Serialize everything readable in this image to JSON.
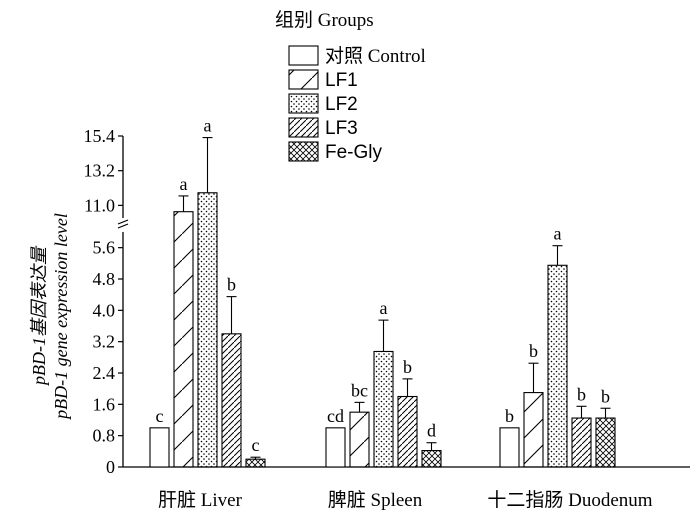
{
  "chart_data": {
    "type": "bar",
    "legend_title": "组别 Groups",
    "legend_position": "top-center",
    "ylabel_line1": "pBD-1基因表达量",
    "ylabel_line2": "pBD-1 gene expression level",
    "y_axis_break": true,
    "y_ranges": [
      [
        0,
        6.0
      ],
      [
        10.2,
        15.4
      ]
    ],
    "y_ticks_lower": [
      "0",
      "0.8",
      "1.6",
      "2.4",
      "3.2",
      "4.0",
      "4.8",
      "5.6"
    ],
    "y_ticks_upper": [
      "11.0",
      "13.2",
      "15.4"
    ],
    "categories": [
      "肝脏 Liver",
      "脾脏 Spleen",
      "十二指肠 Duodenum"
    ],
    "series": [
      {
        "name": "对照 Control",
        "values": [
          1.0,
          1.0,
          1.0
        ],
        "errors": [
          0,
          0,
          0
        ],
        "letters": [
          "c",
          "cd",
          "b"
        ],
        "pattern": "blank"
      },
      {
        "name": "LF1",
        "values": [
          10.6,
          1.4,
          1.9
        ],
        "errors": [
          1.0,
          0.25,
          0.75
        ],
        "letters": [
          "a",
          "bc",
          "b"
        ],
        "pattern": "diag-wide"
      },
      {
        "name": "LF2",
        "values": [
          11.8,
          2.95,
          5.15
        ],
        "errors": [
          3.5,
          0.8,
          0.5
        ],
        "letters": [
          "a",
          "a",
          "a"
        ],
        "pattern": "dots"
      },
      {
        "name": "LF3",
        "values": [
          3.4,
          1.8,
          1.25
        ],
        "errors": [
          0.95,
          0.45,
          0.3
        ],
        "letters": [
          "b",
          "b",
          "b"
        ],
        "pattern": "diag-dense"
      },
      {
        "name": "Fe-Gly",
        "values": [
          0.2,
          0.42,
          1.25
        ],
        "errors": [
          0.05,
          0.2,
          0.25
        ],
        "letters": [
          "c",
          "d",
          "b"
        ],
        "pattern": "crosshatch"
      }
    ],
    "colors": {
      "bar_stroke": "#000000",
      "fill": "#ffffff"
    }
  }
}
